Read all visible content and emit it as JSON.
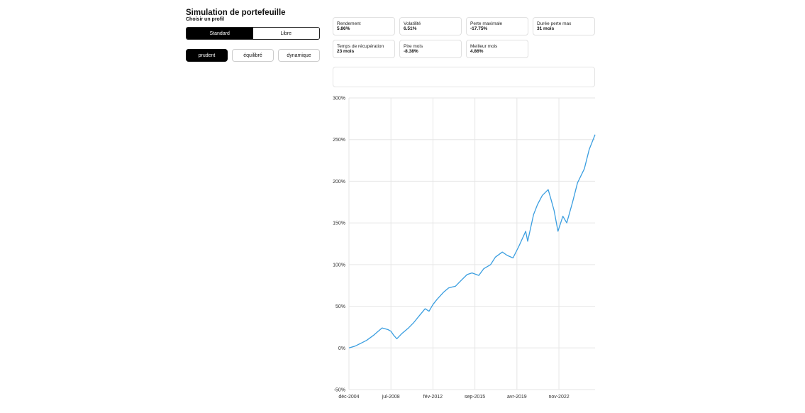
{
  "header": {
    "title": "Simulation de portefeuille",
    "subtitle": "Choisir un profil"
  },
  "mode_toggle": {
    "options": [
      "Standard",
      "Libre"
    ],
    "selected": "Standard"
  },
  "profiles": {
    "options": [
      "prudent",
      "équilibré",
      "dynamique"
    ],
    "selected": "prudent"
  },
  "stats": [
    {
      "label": "Rendement",
      "value": "5.86%"
    },
    {
      "label": "Volatilité",
      "value": "6.51%"
    },
    {
      "label": "Perte maximale",
      "value": "-17.75%"
    },
    {
      "label": "Durée perte max",
      "value": "31 mois"
    },
    {
      "label": "Temps de récupération",
      "value": "23 mois"
    },
    {
      "label": "Pire mois",
      "value": "-8.38%"
    },
    {
      "label": "Meilleur mois",
      "value": "4.86%"
    }
  ],
  "colors": {
    "line": "#3a9ee0",
    "grid": "#e6e6e6",
    "active": "#000000"
  },
  "chart_data": {
    "type": "line",
    "title": "",
    "xlabel": "",
    "ylabel": "",
    "ylim": [
      -50,
      300
    ],
    "yticks": [
      "-50%",
      "0%",
      "50%",
      "100%",
      "150%",
      "200%",
      "250%",
      "300%"
    ],
    "xticks": [
      "déc-2004",
      "jul-2008",
      "fév-2012",
      "sep-2015",
      "avr-2019",
      "nov-2022"
    ],
    "x_range": [
      "déc-2004",
      "déc-2025"
    ],
    "grid": true,
    "series": [
      {
        "name": "",
        "points": [
          [
            "2004-12",
            0
          ],
          [
            "2005-06",
            2
          ],
          [
            "2006-01",
            6
          ],
          [
            "2006-06",
            9
          ],
          [
            "2007-01",
            15
          ],
          [
            "2007-06",
            20
          ],
          [
            "2007-10",
            24
          ],
          [
            "2008-04",
            22
          ],
          [
            "2008-07",
            20
          ],
          [
            "2008-10",
            15
          ],
          [
            "2009-01",
            11
          ],
          [
            "2009-06",
            17
          ],
          [
            "2010-01",
            24
          ],
          [
            "2010-06",
            30
          ],
          [
            "2011-01",
            40
          ],
          [
            "2011-06",
            47
          ],
          [
            "2011-10",
            44
          ],
          [
            "2012-02",
            52
          ],
          [
            "2012-06",
            58
          ],
          [
            "2013-01",
            67
          ],
          [
            "2013-06",
            72
          ],
          [
            "2014-01",
            74
          ],
          [
            "2014-06",
            80
          ],
          [
            "2015-01",
            88
          ],
          [
            "2015-06",
            90
          ],
          [
            "2016-01",
            87
          ],
          [
            "2016-06",
            95
          ],
          [
            "2017-01",
            100
          ],
          [
            "2017-06",
            109
          ],
          [
            "2018-01",
            115
          ],
          [
            "2018-06",
            111
          ],
          [
            "2018-12",
            108
          ],
          [
            "2019-06",
            122
          ],
          [
            "2020-01",
            140
          ],
          [
            "2020-03",
            128
          ],
          [
            "2020-09",
            160
          ],
          [
            "2021-01",
            172
          ],
          [
            "2021-06",
            183
          ],
          [
            "2021-12",
            190
          ],
          [
            "2022-03",
            178
          ],
          [
            "2022-06",
            165
          ],
          [
            "2022-10",
            140
          ],
          [
            "2023-03",
            158
          ],
          [
            "2023-07",
            150
          ],
          [
            "2024-01",
            175
          ],
          [
            "2024-06",
            198
          ],
          [
            "2025-01",
            215
          ],
          [
            "2025-06",
            238
          ],
          [
            "2025-12",
            256
          ]
        ]
      }
    ]
  }
}
